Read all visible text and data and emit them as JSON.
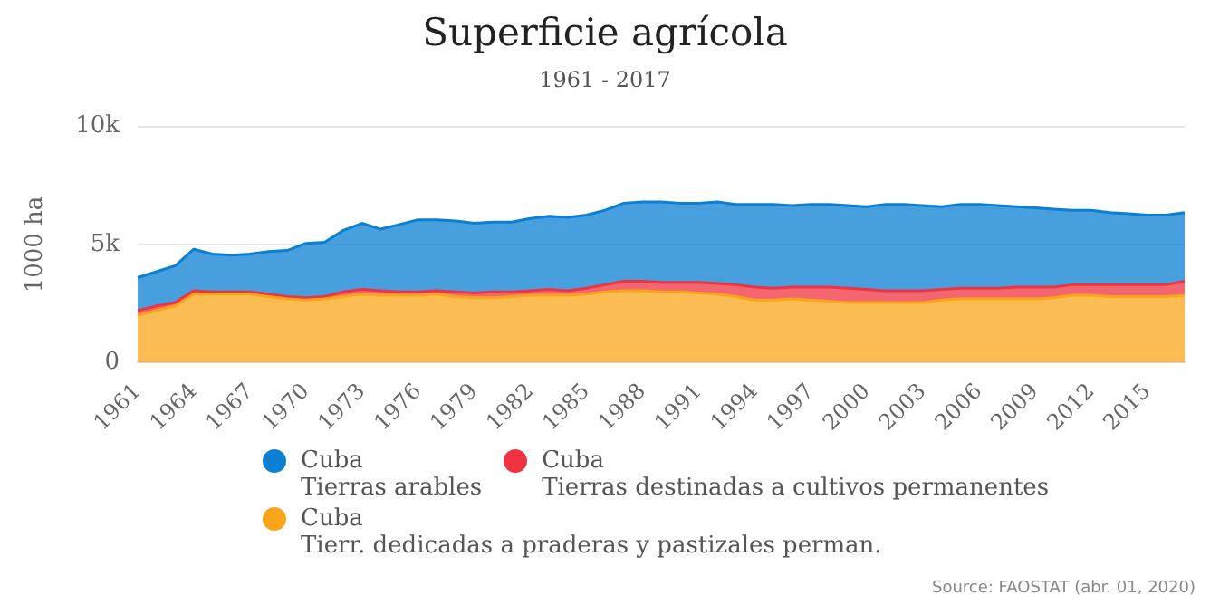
{
  "chart_data": {
    "type": "area",
    "title": "Superficie agrícola",
    "subtitle": "1961 - 2017",
    "ylabel": "1000 ha",
    "categories": [
      "1961",
      null,
      null,
      "1964",
      null,
      null,
      "1967",
      null,
      null,
      "1970",
      null,
      null,
      "1973",
      null,
      null,
      "1976",
      null,
      null,
      "1979",
      null,
      null,
      "1982",
      null,
      null,
      "1985",
      null,
      null,
      "1988",
      null,
      null,
      "1991",
      null,
      null,
      "1994",
      null,
      null,
      "1997",
      null,
      null,
      "2000",
      null,
      null,
      "2003",
      null,
      null,
      "2006",
      null,
      null,
      "2009",
      null,
      null,
      "2012",
      null,
      null,
      "2015",
      null,
      null
    ],
    "stacked": true,
    "series": [
      {
        "name": "Cuba\nTierr. dedicadas a praderas y pastizales perman.",
        "color": "#f9a51a",
        "values": [
          2000,
          2200,
          2400,
          2900,
          2900,
          2900,
          2900,
          2800,
          2700,
          2650,
          2700,
          2800,
          2900,
          2850,
          2850,
          2850,
          2900,
          2800,
          2750,
          2750,
          2800,
          2850,
          2850,
          2850,
          2900,
          3000,
          3050,
          3050,
          3000,
          3000,
          2950,
          2900,
          2800,
          2650,
          2650,
          2700,
          2650,
          2600,
          2550,
          2550,
          2550,
          2550,
          2550,
          2650,
          2700,
          2700,
          2700,
          2700,
          2700,
          2750,
          2850,
          2850,
          2800,
          2800,
          2800,
          2800,
          2850
        ]
      },
      {
        "name": "Cuba\nTierras destinadas a cultivos permanentes",
        "color": "#ef3340",
        "values": [
          200,
          200,
          150,
          150,
          100,
          100,
          100,
          100,
          100,
          100,
          100,
          200,
          200,
          200,
          150,
          150,
          150,
          200,
          200,
          250,
          200,
          200,
          250,
          200,
          250,
          300,
          400,
          400,
          400,
          400,
          450,
          450,
          500,
          550,
          500,
          500,
          550,
          600,
          600,
          550,
          500,
          500,
          500,
          450,
          450,
          450,
          450,
          500,
          500,
          450,
          450,
          450,
          500,
          500,
          500,
          500,
          600
        ]
      },
      {
        "name": "Cuba\nTierras arables",
        "color": "#0b7fd3",
        "values": [
          1400,
          1450,
          1550,
          1750,
          1600,
          1550,
          1600,
          1800,
          1950,
          2300,
          2300,
          2600,
          2800,
          2600,
          2850,
          3050,
          3000,
          3000,
          2950,
          2950,
          2950,
          3050,
          3100,
          3100,
          3100,
          3150,
          3300,
          3350,
          3400,
          3350,
          3350,
          3450,
          3400,
          3500,
          3550,
          3450,
          3500,
          3500,
          3500,
          3500,
          3650,
          3650,
          3600,
          3500,
          3550,
          3550,
          3500,
          3400,
          3350,
          3300,
          3150,
          3150,
          3050,
          3000,
          2950,
          2950,
          2900
        ]
      }
    ],
    "ylim": [
      0,
      10000
    ],
    "yticks": [
      0,
      {
        "value": 5000,
        "label": "5k"
      },
      {
        "value": 10000,
        "label": "10k"
      }
    ],
    "grid": "y",
    "legend": "bottom",
    "annotations": [
      "Source: FAOSTAT (abr. 01, 2020)"
    ]
  }
}
